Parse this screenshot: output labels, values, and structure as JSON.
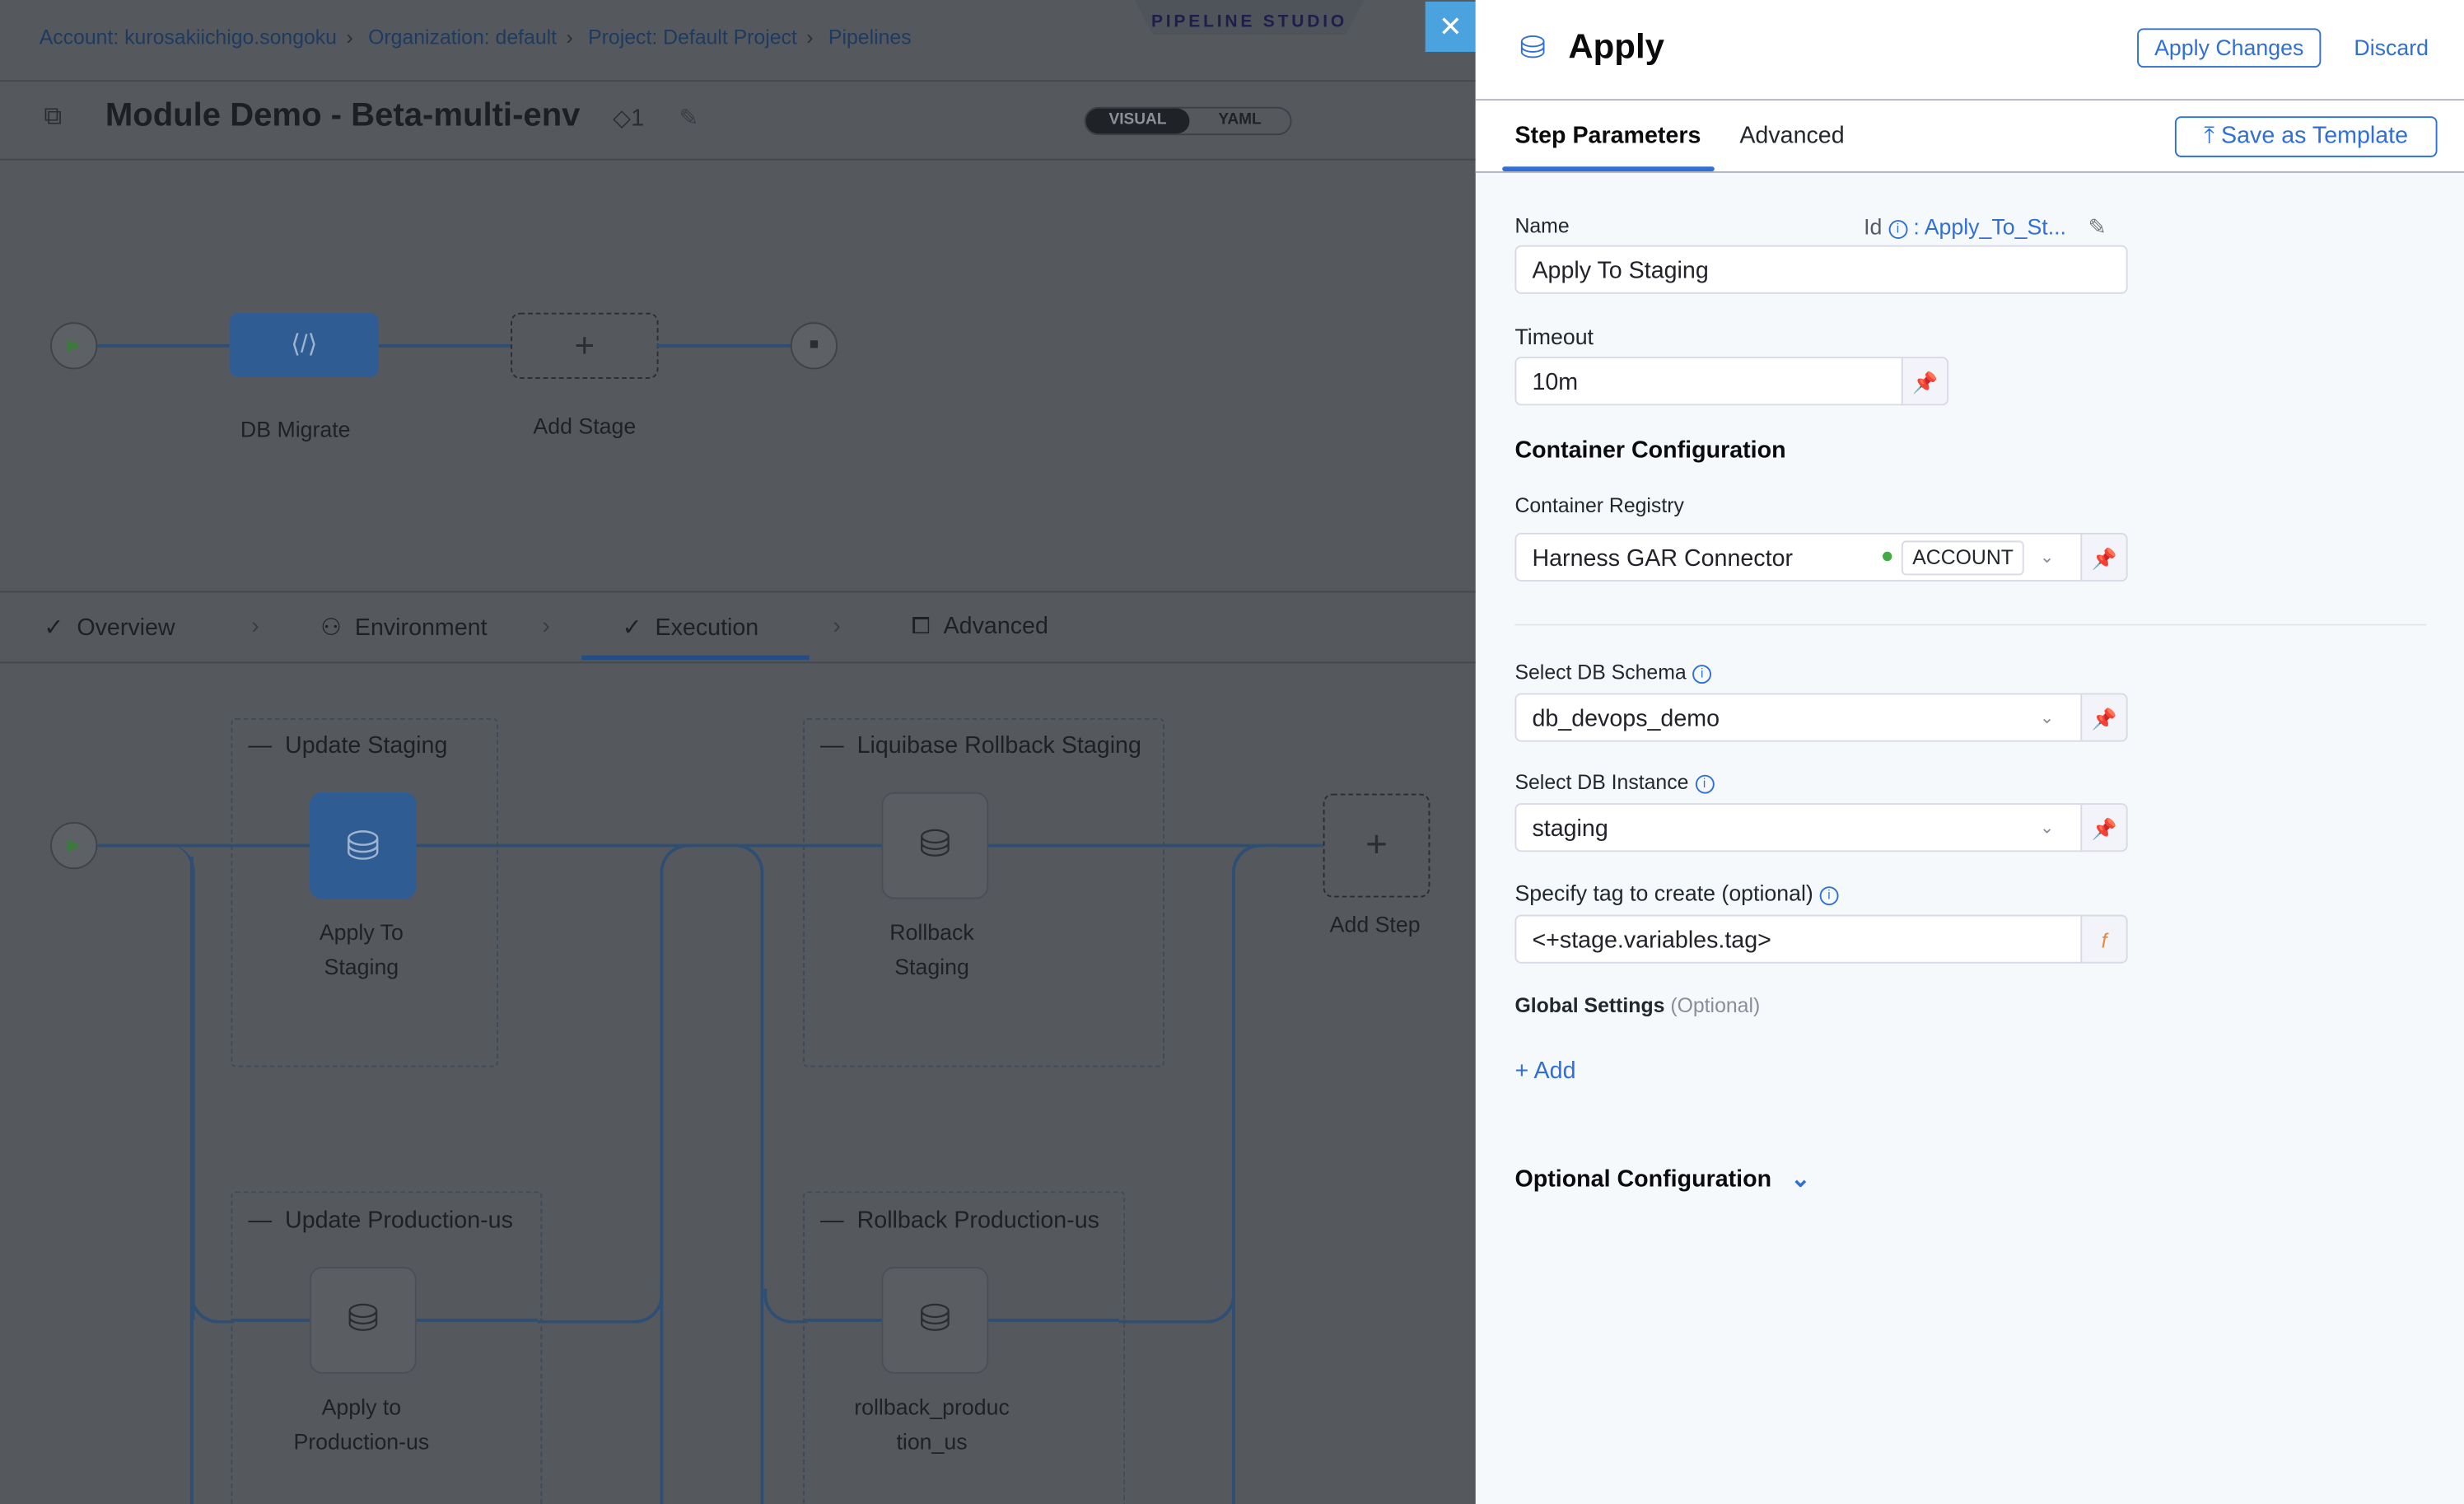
{
  "breadcrumb": [
    "Account: kurosakiichigo.songoku",
    "Organization: default",
    "Project: Default Project",
    "Pipelines"
  ],
  "studio_label": "PIPELINE STUDIO",
  "pipeline": {
    "title": "Module Demo - Beta-multi-env",
    "tag_count": "1",
    "view_toggle": {
      "visual": "VISUAL",
      "yaml": "YAML",
      "selected": "VISUAL"
    }
  },
  "stages": [
    {
      "label": "DB Migrate"
    },
    {
      "label": "Add Stage"
    }
  ],
  "stage_tabs": [
    {
      "label": "Overview",
      "check": true
    },
    {
      "label": "Environment"
    },
    {
      "label": "Execution",
      "check": true,
      "active": true
    },
    {
      "label": "Advanced"
    }
  ],
  "groups": [
    {
      "title": "Update Staging",
      "step": "Apply To\nStaging"
    },
    {
      "title": "Liquibase Rollback Staging",
      "step": "Rollback\nStaging"
    },
    {
      "title": "Update Production-us",
      "step": "Apply to\nProduction-us"
    },
    {
      "title": "Rollback Production-us",
      "step": "rollback_produc\ntion_us"
    }
  ],
  "add_step": "Add Step",
  "panel": {
    "title": "Apply",
    "apply_changes": "Apply Changes",
    "discard": "Discard",
    "tabs": [
      "Step Parameters",
      "Advanced"
    ],
    "active_tab": "Step Parameters",
    "save_template": "Save as Template",
    "name_label": "Name",
    "id_label": "Id",
    "id_value": ": Apply_To_St...",
    "name_value": "Apply To Staging",
    "timeout_label": "Timeout",
    "timeout_value": "10m",
    "container_config": "Container Configuration",
    "registry_label": "Container Registry",
    "registry_value": "Harness GAR Connector",
    "registry_scope": "ACCOUNT",
    "schema_label": "Select DB Schema",
    "schema_value": "db_devops_demo",
    "instance_label": "Select DB Instance",
    "instance_value": "staging",
    "tag_label": "Specify tag to create (optional)",
    "tag_value": "<+stage.variables.tag>",
    "global_settings": "Global Settings",
    "optional": "(Optional)",
    "add": "+ Add",
    "optional_config": "Optional Configuration"
  },
  "colors": {
    "accent": "#2f6fd6",
    "close": "#4aa3df",
    "status_green": "#42ab45"
  }
}
